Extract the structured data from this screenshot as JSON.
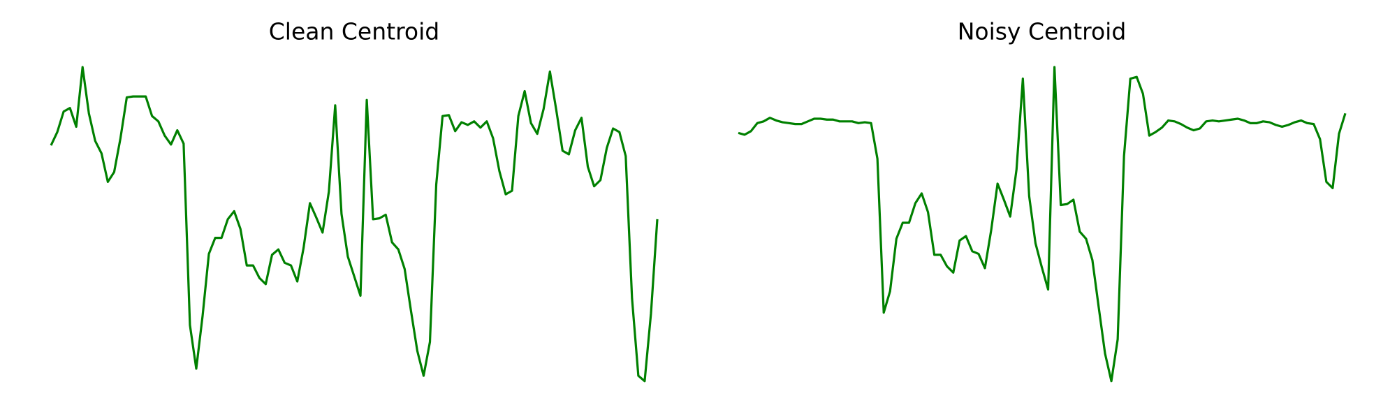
{
  "chart_data": [
    {
      "type": "line",
      "title": "Clean Centroid",
      "color": "#008000",
      "ylim": [
        30,
        410
      ],
      "values": [
        307,
        322,
        345,
        349,
        328,
        395,
        343,
        312,
        298,
        266,
        277,
        315,
        361,
        362,
        362,
        362,
        340,
        334,
        318,
        308,
        324,
        309,
        105,
        56,
        115,
        185,
        203,
        203,
        224,
        233,
        213,
        172,
        172,
        158,
        151,
        184,
        190,
        175,
        172,
        154,
        192,
        242,
        226,
        209,
        255,
        352,
        230,
        182,
        160,
        138,
        358,
        224,
        225,
        229,
        198,
        190,
        168,
        121,
        76,
        48,
        86,
        263,
        340,
        341,
        323,
        333,
        330,
        334,
        327,
        334,
        315,
        278,
        252,
        256,
        340,
        368,
        332,
        320,
        348,
        390,
        347,
        301,
        297,
        324,
        338,
        283,
        261,
        268,
        304,
        326,
        322,
        295,
        135,
        48,
        42,
        118,
        224
      ]
    },
    {
      "type": "line",
      "title": "Noisy Centroid",
      "color": "#008000",
      "ylim": [
        30,
        410
      ],
      "values": [
        321,
        319,
        323,
        332,
        334,
        338,
        335,
        333,
        332,
        331,
        331,
        334,
        337,
        337,
        336,
        336,
        334,
        334,
        334,
        332,
        333,
        332,
        292,
        119,
        143,
        202,
        220,
        220,
        242,
        253,
        232,
        184,
        184,
        171,
        164,
        200,
        205,
        188,
        185,
        169,
        212,
        264,
        246,
        227,
        280,
        382,
        250,
        197,
        170,
        145,
        395,
        240,
        241,
        246,
        210,
        202,
        178,
        125,
        73,
        42,
        89,
        295,
        382,
        384,
        365,
        318,
        322,
        327,
        335,
        334,
        331,
        327,
        324,
        326,
        334,
        335,
        334,
        335,
        336,
        337,
        335,
        332,
        332,
        334,
        333,
        330,
        328,
        330,
        333,
        335,
        332,
        331,
        314,
        266,
        259,
        320,
        343
      ]
    }
  ]
}
